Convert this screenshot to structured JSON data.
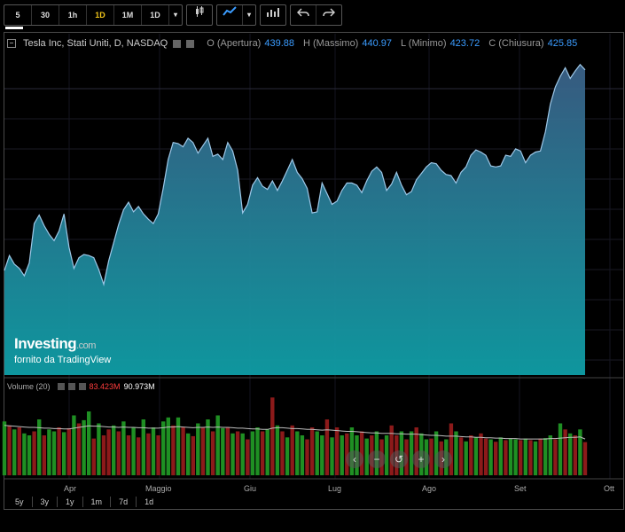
{
  "toolbar": {
    "intervals": [
      "5",
      "30",
      "1h",
      "1D",
      "1M",
      "1D"
    ],
    "active_interval": "1D",
    "dropdown_icon": "chevron-down-icon",
    "chart_type_icons": [
      "candlestick-icon",
      "area-chart-icon",
      "indicators-icon"
    ],
    "undo_icon": "undo-icon",
    "redo_icon": "redo-icon"
  },
  "legend": {
    "title": "Tesla Inc, Stati Uniti, D, NASDAQ",
    "o_label": "O (Apertura)",
    "o_value": "439.88",
    "h_label": "H (Massimo)",
    "h_value": "440.97",
    "l_label": "L (Minimo)",
    "l_value": "423.72",
    "c_label": "C (Chiusura)",
    "c_value": "425.85"
  },
  "volume_legend": {
    "label": "Volume (20)",
    "value_red": "83.423M",
    "value_white": "90.973M"
  },
  "logo": {
    "brand": "Investing",
    "brand_suffix": ".com",
    "subtitle": "fornito da TradingView"
  },
  "x_axis": [
    "Apr",
    "Maggio",
    "Giu",
    "Lug",
    "Ago",
    "Set",
    "Ott"
  ],
  "range_buttons": [
    "5y",
    "3y",
    "1y",
    "1m",
    "7d",
    "1d"
  ],
  "nav_buttons": [
    "‹",
    "−",
    "↺",
    "+",
    "›"
  ],
  "colors": {
    "area_top": "#3a5f86",
    "area_bottom": "#0f9ea6",
    "line": "#9ec8e8",
    "vol_up": "#1f8f23",
    "vol_down": "#8c1a1a",
    "accent": "#3b9cff",
    "active_interval": "#f0c419"
  },
  "chart_data": [
    {
      "type": "area",
      "title": "Tesla Inc, Stati Uniti, D, NASDAQ",
      "x_range": [
        "2025-03-20",
        "2025-09-22"
      ],
      "x_ticks": [
        "Apr",
        "Maggio",
        "Giu",
        "Lug",
        "Ago",
        "Set",
        "Ott"
      ],
      "series": [
        {
          "values": [
            238,
            252,
            244,
            240,
            233,
            245,
            282,
            290,
            280,
            272,
            266,
            275,
            291,
            260,
            240,
            250,
            253,
            252,
            250,
            239,
            225,
            247,
            264,
            281,
            295,
            302,
            293,
            298,
            291,
            286,
            282,
            291,
            315,
            342,
            358,
            357,
            354,
            362,
            358,
            348,
            355,
            362,
            345,
            347,
            342,
            358,
            350,
            332,
            292,
            300,
            318,
            325,
            317,
            314,
            322,
            313,
            322,
            332,
            342,
            330,
            324,
            315,
            292,
            293,
            320,
            310,
            300,
            303,
            313,
            320,
            320,
            318,
            311,
            322,
            331,
            335,
            330,
            313,
            319,
            330,
            318,
            309,
            312,
            323,
            329,
            335,
            339,
            338,
            332,
            328,
            327,
            320,
            330,
            335,
            346,
            351,
            349,
            346,
            336,
            335,
            336,
            346,
            345,
            352,
            350,
            339,
            346,
            349,
            350,
            368,
            394,
            410,
            420,
            428,
            418,
            425,
            431,
            426
          ]
        }
      ]
    },
    {
      "type": "bar",
      "title": "Volume (20)",
      "series": [
        {
          "name": "Volume",
          "values_millions": [
            135,
            125,
            115,
            120,
            105,
            100,
            110,
            140,
            100,
            115,
            110,
            120,
            108,
            118,
            150,
            130,
            138,
            160,
            92,
            130,
            100,
            115,
            125,
            110,
            135,
            100,
            120,
            95,
            140,
            105,
            120,
            100,
            135,
            145,
            125,
            145,
            120,
            105,
            98,
            130,
            120,
            140,
            110,
            150,
            118,
            120,
            105,
            110,
            105,
            90,
            110,
            120,
            110,
            115,
            195,
            125,
            110,
            95,
            125,
            110,
            100,
            90,
            120,
            110,
            100,
            140,
            95,
            120,
            100,
            105,
            120,
            100,
            110,
            92,
            100,
            110,
            90,
            100,
            125,
            100,
            110,
            90,
            110,
            120,
            105,
            90,
            92,
            110,
            85,
            90,
            130,
            110,
            95,
            85,
            100,
            95,
            105,
            92,
            90,
            84,
            95,
            88,
            92,
            90,
            88,
            92,
            88,
            85,
            92,
            93,
            100,
            90,
            130,
            115,
            105,
            100,
            115,
            83
          ],
          "up": [
            true,
            false,
            true,
            false,
            true,
            true,
            false,
            true,
            false,
            true,
            true,
            false,
            true,
            false,
            true,
            false,
            true,
            true,
            false,
            true,
            false,
            false,
            true,
            false,
            true,
            false,
            true,
            false,
            true,
            false,
            true,
            false,
            true,
            true,
            false,
            true,
            false,
            true,
            false,
            true,
            false,
            true,
            false,
            true,
            true,
            false,
            true,
            false,
            true,
            false,
            true,
            true,
            false,
            true,
            false,
            true,
            false,
            true,
            false,
            true,
            true,
            false,
            false,
            true,
            true,
            false,
            true,
            false,
            true,
            false,
            true,
            true,
            false,
            true,
            false,
            true,
            false,
            true,
            false,
            false,
            true,
            false,
            true,
            false,
            true,
            true,
            false,
            true,
            false,
            true,
            false,
            true,
            false,
            true,
            false,
            true,
            false,
            false,
            true,
            false,
            true,
            false,
            true,
            true,
            false,
            true,
            false,
            true,
            false,
            true,
            true,
            false,
            true,
            false,
            true,
            false,
            true,
            false
          ]
        },
        {
          "name": "MA (20)",
          "values_millions": [
            125,
            124,
            123,
            122,
            121,
            120,
            120,
            119,
            118,
            118,
            117,
            117,
            116,
            116,
            118,
            120,
            122,
            124,
            123,
            123,
            122,
            121,
            121,
            120,
            121,
            120,
            120,
            119,
            119,
            118,
            118,
            118,
            119,
            121,
            121,
            122,
            121,
            120,
            119,
            120,
            120,
            121,
            120,
            121,
            120,
            120,
            119,
            118,
            118,
            117,
            116,
            116,
            115,
            115,
            118,
            119,
            119,
            118,
            117,
            117,
            116,
            115,
            115,
            114,
            113,
            114,
            113,
            112,
            111,
            110,
            110,
            109,
            108,
            107,
            106,
            106,
            105,
            105,
            105,
            104,
            104,
            103,
            103,
            103,
            102,
            101,
            100,
            100,
            99,
            98,
            98,
            98,
            97,
            96,
            96,
            95,
            95,
            94,
            94,
            93,
            93,
            92,
            92,
            92,
            91,
            91,
            91,
            91,
            91,
            91,
            92,
            92,
            93,
            94,
            95,
            95,
            96,
            91
          ]
        }
      ]
    }
  ]
}
